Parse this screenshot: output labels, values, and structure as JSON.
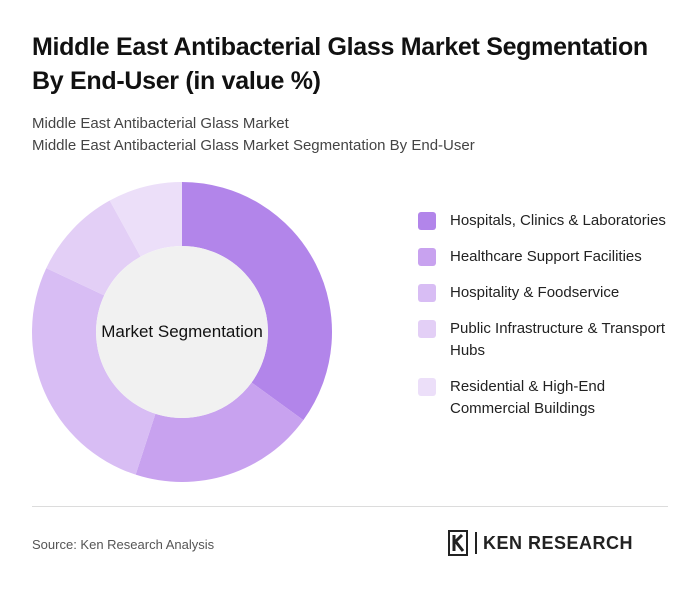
{
  "header": {
    "title": "Middle East Antibacterial Glass Market Segmentation By End-User (in value %)",
    "subtitle_line1": "Middle East Antibacterial Glass Market",
    "subtitle_line2": "Middle East Antibacterial Glass Market Segmentation By End-User"
  },
  "chart_data": {
    "type": "pie",
    "center_label": "Market Segmentation",
    "categories": [
      "Hospitals, Clinics & Laboratories",
      "Healthcare Support Facilities",
      "Hospitality & Foodservice",
      "Public Infrastructure & Transport Hubs",
      "Residential & High-End Commercial Buildings"
    ],
    "values": [
      35,
      20,
      27,
      10,
      8
    ],
    "colors": [
      "#b285ea",
      "#c8a2ef",
      "#d8bdf4",
      "#e3cff6",
      "#ecdff9"
    ],
    "legend_position": "right"
  },
  "footer": {
    "source": "Source: Ken Research Analysis",
    "logo_text": "KEN RESEARCH"
  }
}
